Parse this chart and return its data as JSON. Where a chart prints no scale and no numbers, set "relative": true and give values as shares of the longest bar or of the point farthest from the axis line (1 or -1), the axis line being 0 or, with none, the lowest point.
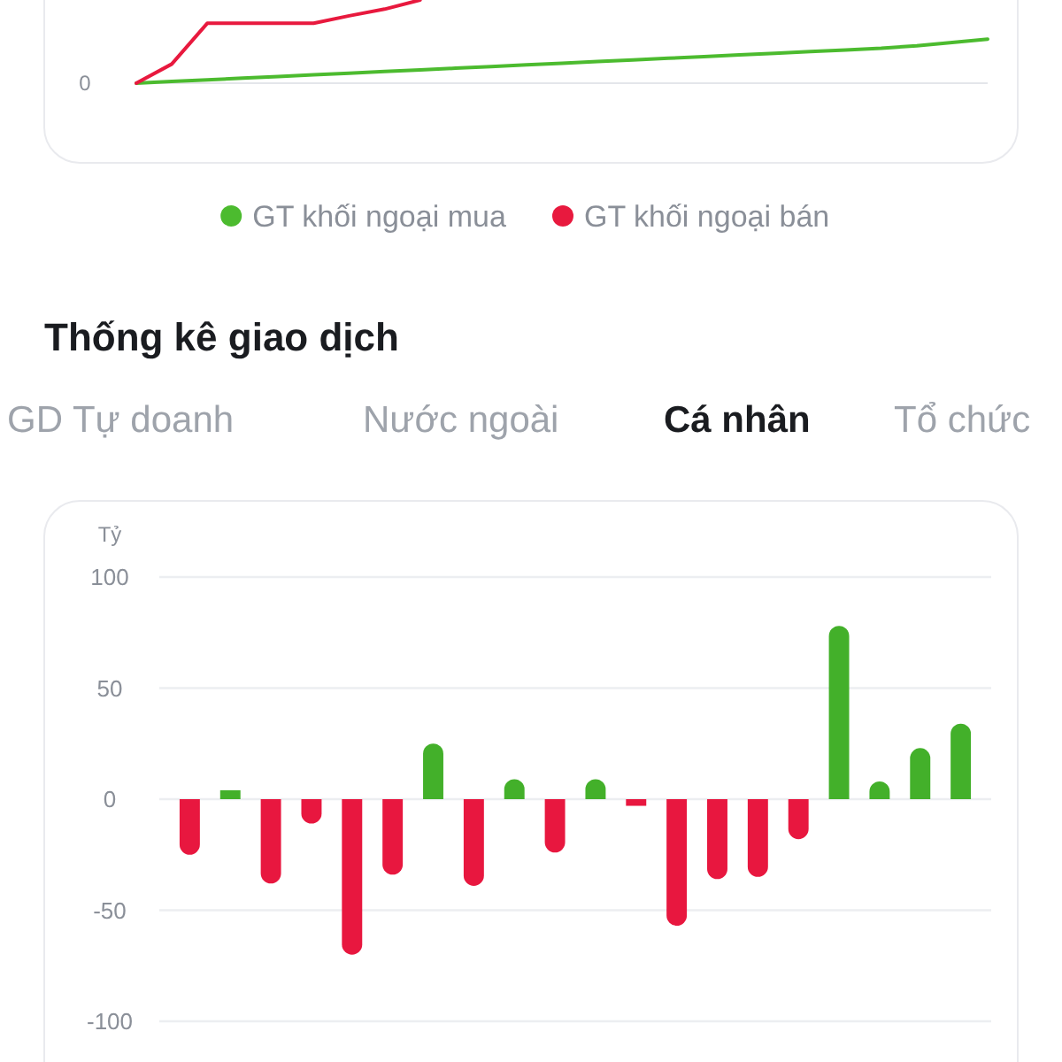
{
  "chart_data": [
    {
      "type": "line",
      "relative": true,
      "categories": [
        null,
        null,
        null,
        null,
        null,
        null,
        null,
        null,
        null,
        null,
        null,
        null,
        null,
        null,
        null,
        null,
        null,
        null,
        null,
        null,
        null,
        null,
        null,
        null,
        null
      ],
      "legend": "bottom",
      "annotations": [
        "0"
      ],
      "series": [
        {
          "name": "GT khối ngoại mua",
          "color": "#4cbb2f",
          "values": [
            0,
            0.02,
            0.04,
            0.06,
            0.08,
            0.1,
            0.12,
            0.14,
            0.16,
            0.18,
            0.2,
            0.22,
            0.24,
            0.26,
            0.28,
            0.3,
            0.32,
            0.34,
            0.36,
            0.38,
            0.4,
            0.42,
            0.45,
            0.49,
            0.53
          ]
        },
        {
          "name": "GT khối ngoại bán",
          "color": "#e8193e",
          "values": [
            0,
            0.23,
            0.72,
            0.72,
            0.72,
            0.72,
            0.81,
            0.89,
            1,
            null,
            null,
            null,
            null,
            null,
            null,
            null,
            null,
            null,
            null,
            null,
            null,
            null,
            null,
            null,
            null
          ]
        }
      ]
    },
    {
      "type": "bar",
      "title": "Thống kê giao dịch",
      "ylabel": "Tỷ",
      "annotations": [
        "GD Tự doanh",
        "Nước ngoài",
        "Cá nhân",
        "Tổ chức"
      ],
      "categories": [
        null,
        null,
        null,
        null,
        null,
        null,
        null,
        null,
        null,
        null,
        null,
        null,
        null,
        null,
        null,
        null,
        null,
        null,
        null,
        null
      ],
      "values": [
        -25,
        4,
        -38,
        -11,
        -70,
        -34,
        25,
        -39,
        9,
        -24,
        9,
        -3,
        -57,
        -36,
        -35,
        -18,
        78,
        8,
        23,
        34
      ],
      "colors": [
        "#e8173f",
        "#43b02a",
        "#e8173f",
        "#e8173f",
        "#e8173f",
        "#e8173f",
        "#43b02a",
        "#e8173f",
        "#43b02a",
        "#e8173f",
        "#43b02a",
        "#e8173f",
        "#e8173f",
        "#e8173f",
        "#e8173f",
        "#e8173f",
        "#43b02a",
        "#43b02a",
        "#43b02a",
        "#43b02a"
      ],
      "ylim": [
        -100,
        100
      ],
      "yticks": [
        -100,
        -50,
        0,
        50,
        100
      ],
      "grid": "y"
    }
  ]
}
